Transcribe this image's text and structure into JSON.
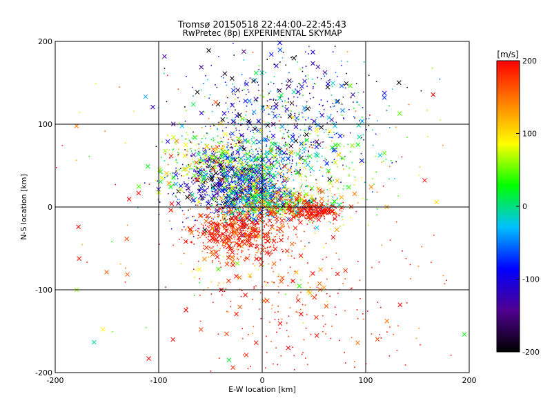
{
  "chart_data": {
    "type": "scatter",
    "title": "Tromsø 20150518 22:44:00–22:45:43",
    "subtitle": "RwPretec (8p) EXPERIMENTAL SKYMAP",
    "xlabel": "E-W location [km]",
    "ylabel": "N-S location [km]",
    "xlim": [
      -200,
      200
    ],
    "ylim": [
      -200,
      200
    ],
    "xticks": [
      -200,
      -100,
      0,
      100,
      200
    ],
    "yticks": [
      -200,
      -100,
      0,
      100,
      200
    ],
    "grid": true,
    "marker_types": [
      "x",
      "dot"
    ],
    "colorbar": {
      "label": "[m/s]",
      "range": [
        -200,
        200
      ],
      "ticks": [
        -200,
        -100,
        0,
        100,
        200
      ],
      "colors": [
        "#000000",
        "#500090",
        "#0000ff",
        "#00c0ff",
        "#00ff00",
        "#ffff00",
        "#ff8000",
        "#ff0000"
      ],
      "placement": "right"
    },
    "clusters": [
      {
        "center": [
          -35,
          30
        ],
        "spread": [
          25,
          25
        ],
        "count": 700,
        "velocity_mean": -130,
        "velocity_spread": 60
      },
      {
        "center": [
          -10,
          20
        ],
        "spread": [
          18,
          22
        ],
        "count": 500,
        "velocity_mean": -40,
        "velocity_spread": 60
      },
      {
        "center": [
          0,
          40
        ],
        "spread": [
          25,
          30
        ],
        "count": 400,
        "velocity_mean": 10,
        "velocity_spread": 90
      },
      {
        "center": [
          20,
          5
        ],
        "spread": [
          25,
          10
        ],
        "count": 500,
        "velocity_mean": 60,
        "velocity_spread": 90
      },
      {
        "center": [
          50,
          -5
        ],
        "spread": [
          15,
          5
        ],
        "count": 250,
        "velocity_mean": 190,
        "velocity_spread": 15
      },
      {
        "center": [
          -20,
          -30
        ],
        "spread": [
          25,
          15
        ],
        "count": 600,
        "velocity_mean": 185,
        "velocity_spread": 25
      },
      {
        "center": [
          10,
          130
        ],
        "spread": [
          45,
          40
        ],
        "count": 300,
        "velocity_mean": -120,
        "velocity_spread": 70
      },
      {
        "center": [
          40,
          100
        ],
        "spread": [
          40,
          40
        ],
        "count": 250,
        "velocity_mean": -70,
        "velocity_spread": 80
      },
      {
        "center": [
          -55,
          60
        ],
        "spread": [
          25,
          20
        ],
        "count": 250,
        "velocity_mean": 70,
        "velocity_spread": 50
      },
      {
        "center": [
          60,
          40
        ],
        "spread": [
          40,
          30
        ],
        "count": 150,
        "velocity_mean": 60,
        "velocity_spread": 70
      },
      {
        "center": [
          0,
          -90
        ],
        "spread": [
          40,
          30
        ],
        "count": 120,
        "velocity_mean": 150,
        "velocity_spread": 60
      },
      {
        "center": [
          50,
          -130
        ],
        "spread": [
          60,
          50
        ],
        "count": 160,
        "velocity_mean": 190,
        "velocity_spread": 20
      },
      {
        "center": [
          0,
          0
        ],
        "spread": [
          140,
          140
        ],
        "count": 180,
        "velocity_mean": 150,
        "velocity_spread": 80
      }
    ]
  }
}
